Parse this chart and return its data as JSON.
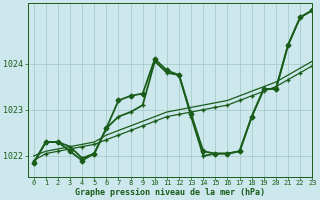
{
  "background_color": "#cce8ec",
  "grid_color": "#aacccc",
  "line_color": "#1a5c1a",
  "xlabel": "Graphe pression niveau de la mer (hPa)",
  "xlim": [
    -0.5,
    23
  ],
  "ylim": [
    1021.55,
    1025.3
  ],
  "yticks": [
    1022,
    1023,
    1024
  ],
  "xticks": [
    0,
    1,
    2,
    3,
    4,
    5,
    6,
    7,
    8,
    9,
    10,
    11,
    12,
    13,
    14,
    15,
    16,
    17,
    18,
    19,
    20,
    21,
    22,
    23
  ],
  "series": [
    {
      "x": [
        0,
        1,
        2,
        3,
        4,
        5,
        6,
        7,
        8,
        9,
        10,
        11,
        12,
        13,
        14,
        15,
        16,
        17,
        18,
        19,
        20,
        21,
        22,
        23
      ],
      "y": [
        1021.9,
        1022.05,
        1022.1,
        1022.15,
        1022.2,
        1022.25,
        1022.35,
        1022.45,
        1022.55,
        1022.65,
        1022.75,
        1022.85,
        1022.9,
        1022.95,
        1023.0,
        1023.05,
        1023.1,
        1023.2,
        1023.3,
        1023.4,
        1023.5,
        1023.65,
        1023.8,
        1023.95
      ],
      "marker": "+",
      "markersize": 3.5,
      "linewidth": 0.9,
      "linestyle": "-"
    },
    {
      "x": [
        0,
        1,
        2,
        3,
        4,
        5,
        6,
        7,
        8,
        9,
        10,
        11,
        12,
        13,
        14,
        15,
        16,
        17,
        18,
        19,
        20,
        21,
        22,
        23
      ],
      "y": [
        1022.0,
        1022.1,
        1022.15,
        1022.2,
        1022.25,
        1022.3,
        1022.45,
        1022.55,
        1022.65,
        1022.75,
        1022.85,
        1022.95,
        1023.0,
        1023.05,
        1023.1,
        1023.15,
        1023.2,
        1023.3,
        1023.4,
        1023.5,
        1023.6,
        1023.75,
        1023.9,
        1024.05
      ],
      "marker": null,
      "markersize": 0,
      "linewidth": 0.9,
      "linestyle": "-"
    },
    {
      "x": [
        0,
        1,
        2,
        3,
        4,
        5,
        6,
        7,
        8,
        9,
        10,
        11,
        12,
        13,
        14,
        15,
        16,
        17,
        18,
        19,
        20,
        21,
        22,
        23
      ],
      "y": [
        1021.85,
        1022.3,
        1022.3,
        1022.1,
        1021.9,
        1022.05,
        1022.6,
        1023.2,
        1023.3,
        1023.35,
        1024.1,
        1023.85,
        1023.75,
        1022.9,
        1022.1,
        1022.05,
        1022.05,
        1022.1,
        1022.85,
        1023.45,
        1023.45,
        1024.4,
        1025.0,
        1025.15
      ],
      "marker": "D",
      "markersize": 2.5,
      "linewidth": 1.3,
      "linestyle": "-"
    },
    {
      "x": [
        0,
        1,
        2,
        3,
        4,
        5,
        6,
        7,
        8,
        9,
        10,
        11,
        12,
        13,
        14,
        15,
        16,
        17,
        18,
        19,
        20,
        21,
        22,
        23
      ],
      "y": [
        1021.85,
        1022.3,
        1022.3,
        1022.2,
        1021.95,
        1022.05,
        1022.6,
        1022.85,
        1022.95,
        1023.1,
        1024.05,
        1023.8,
        1023.75,
        1022.85,
        1022.0,
        1022.05,
        1022.05,
        1022.1,
        1022.85,
        1023.45,
        1023.45,
        1024.4,
        1025.0,
        1025.15
      ],
      "marker": "+",
      "markersize": 3.5,
      "linewidth": 1.3,
      "linestyle": "-"
    }
  ]
}
